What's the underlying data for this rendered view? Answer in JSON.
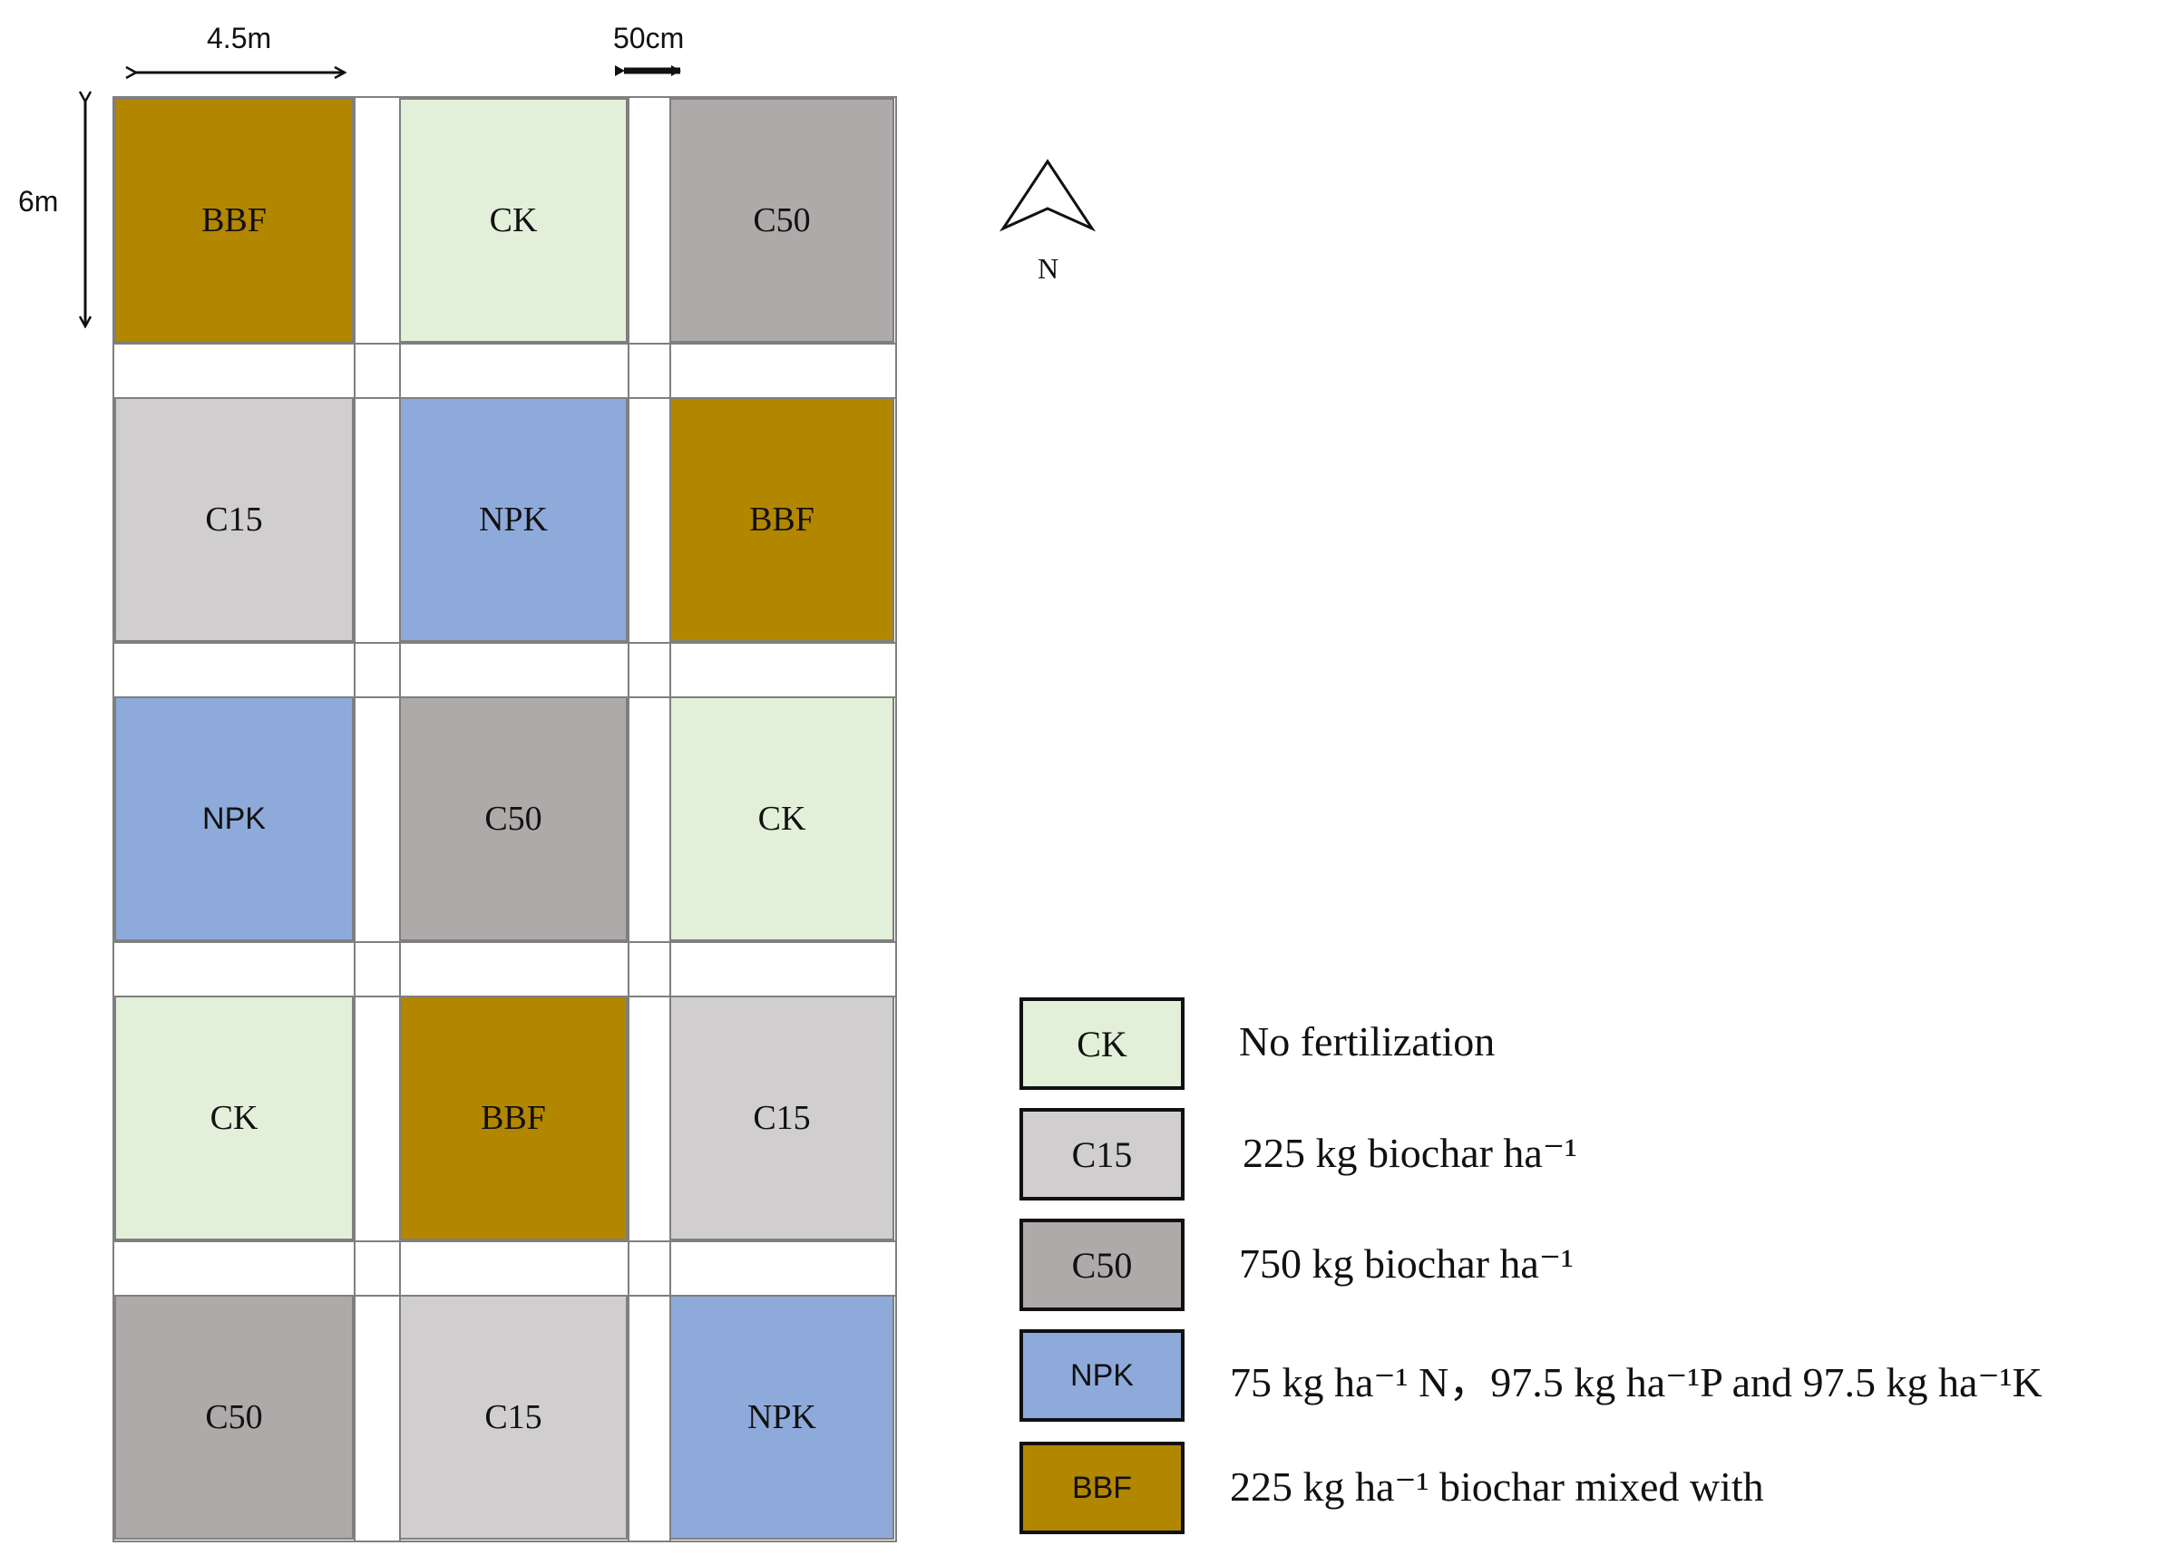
{
  "dimensions": {
    "plot_width_label": "4.5m",
    "plot_height_label": "6m",
    "path_width_label": "50cm"
  },
  "compass": {
    "icon": "north-arrow-icon",
    "label": "N"
  },
  "colors": {
    "CK": "#e2efd9",
    "C15": "#d0cece",
    "C50": "#aeaaaa",
    "NPK": "#8eaadb",
    "BBF": "#b38600"
  },
  "plots": [
    [
      "BBF",
      "CK",
      "C50"
    ],
    [
      "C15",
      "NPK",
      "BBF"
    ],
    [
      "NPK",
      "C50",
      "CK"
    ],
    [
      "CK",
      "BBF",
      "C15"
    ],
    [
      "C50",
      "C15",
      "NPK"
    ]
  ],
  "legend": [
    {
      "code": "CK",
      "description": "No fertilization"
    },
    {
      "code": "C15",
      "description": "225 kg biochar ha⁻¹"
    },
    {
      "code": "C50",
      "description": "750 kg biochar ha⁻¹"
    },
    {
      "code": "NPK",
      "description": "75 kg ha⁻¹ N，97.5 kg ha⁻¹P and 97.5 kg ha⁻¹K"
    },
    {
      "code": "BBF",
      "description": "225  kg  ha⁻¹  biochar  mixed  with"
    }
  ]
}
